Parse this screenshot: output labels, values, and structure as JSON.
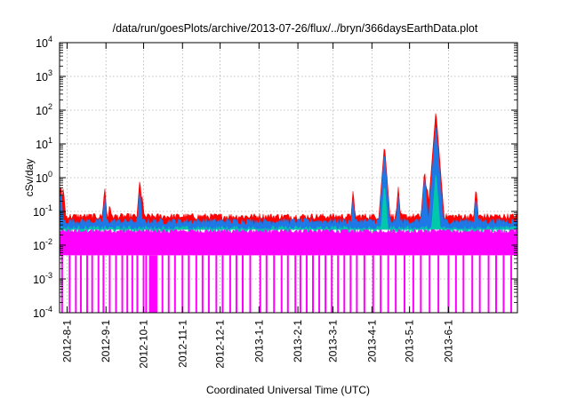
{
  "chart_data": {
    "type": "area",
    "title": "/data/run/goesPlots/archive/2013-07-26/flux/../bryn/366daysEarthData.plot",
    "xlabel": "Coordinated Universal Time (UTC)",
    "ylabel": "cSv/day",
    "y_scale": "log",
    "ylim": [
      0.0001,
      10000
    ],
    "y_ticks": [
      {
        "value": 0.0001,
        "base": "10",
        "exp": "-4"
      },
      {
        "value": 0.001,
        "base": "10",
        "exp": "-3"
      },
      {
        "value": 0.01,
        "base": "10",
        "exp": "-2"
      },
      {
        "value": 0.1,
        "base": "10",
        "exp": "-1"
      },
      {
        "value": 1,
        "base": "10",
        "exp": "0"
      },
      {
        "value": 10,
        "base": "10",
        "exp": "1"
      },
      {
        "value": 100,
        "base": "10",
        "exp": "2"
      },
      {
        "value": 1000,
        "base": "10",
        "exp": "3"
      },
      {
        "value": 10000,
        "base": "10",
        "exp": "4"
      }
    ],
    "xlim": [
      "2012-07-26",
      "2013-07-26"
    ],
    "x_ticks": [
      "2012-8-1",
      "2012-9-1",
      "2012-10-1",
      "2012-11-1",
      "2012-12-1",
      "2013-1-1",
      "2013-2-1",
      "2013-3-1",
      "2013-4-1",
      "2013-5-1",
      "2013-6-1"
    ],
    "grid": true,
    "colors": {
      "series_top": "#ff0000",
      "series_mid": "#1e78e6",
      "series_teal": "#00c8aa",
      "series_base": "#ff00ff"
    },
    "series": [
      {
        "color": "#ff0000",
        "baseline": 0.07,
        "peaks": [
          [
            "2012-07-27",
            0.7
          ],
          [
            "2012-07-29",
            0.55
          ],
          [
            "2012-08-31",
            0.55
          ],
          [
            "2012-09-04",
            0.2
          ],
          [
            "2012-09-28",
            0.95
          ],
          [
            "2012-09-30",
            0.3
          ],
          [
            "2013-03-17",
            0.45
          ],
          [
            "2013-04-11",
            10
          ],
          [
            "2013-04-22",
            0.55
          ],
          [
            "2013-05-13",
            1.8
          ],
          [
            "2013-05-15",
            0.65
          ],
          [
            "2013-05-22",
            100
          ],
          [
            "2013-05-24",
            2
          ],
          [
            "2013-06-23",
            0.55
          ]
        ]
      },
      {
        "color": "#1e78e6",
        "baseline": 0.05,
        "peaks": [
          [
            "2012-07-27",
            0.45
          ],
          [
            "2012-08-31",
            0.3
          ],
          [
            "2012-09-28",
            0.45
          ],
          [
            "2013-03-17",
            0.25
          ],
          [
            "2013-04-11",
            6
          ],
          [
            "2013-04-22",
            0.3
          ],
          [
            "2013-05-13",
            1.2
          ],
          [
            "2013-05-22",
            40
          ],
          [
            "2013-06-23",
            0.3
          ]
        ]
      },
      {
        "color": "#00c8aa",
        "baseline": 0.03,
        "peaks": [
          [
            "2013-04-11",
            0.7
          ],
          [
            "2013-05-22",
            1.5
          ]
        ]
      },
      {
        "color": "#ff00ff",
        "band": [
          0.005,
          0.03
        ],
        "dropouts_to": 0.0001,
        "dropout_dates": [
          "2012-07-28",
          "2012-08-03",
          "2012-08-08",
          "2012-08-12",
          "2012-08-17",
          "2012-08-21",
          "2012-08-26",
          "2012-08-30",
          "2012-09-04",
          "2012-09-09",
          "2012-09-14",
          "2012-09-18",
          "2012-09-22",
          "2012-09-26",
          "2012-10-01",
          "2012-10-03",
          "2012-10-06",
          "2012-10-11",
          "2012-10-16",
          "2012-10-21",
          "2012-10-26",
          "2012-11-01",
          "2012-11-06",
          "2012-11-12",
          "2012-11-17",
          "2012-11-22",
          "2012-11-28",
          "2012-12-03",
          "2012-12-09",
          "2012-12-14",
          "2012-12-19",
          "2012-12-25",
          "2013-01-02",
          "2013-01-07",
          "2013-01-13",
          "2013-01-19",
          "2013-01-24",
          "2013-01-30",
          "2013-02-03",
          "2013-02-08",
          "2013-02-13",
          "2013-02-18",
          "2013-02-23",
          "2013-02-28",
          "2013-03-05",
          "2013-03-10",
          "2013-03-15",
          "2013-03-20",
          "2013-03-26",
          "2013-04-02",
          "2013-04-08",
          "2013-04-14",
          "2013-04-20",
          "2013-04-27",
          "2013-05-04",
          "2013-05-10",
          "2013-05-17",
          "2013-05-24",
          "2013-06-01",
          "2013-06-07",
          "2013-06-13",
          "2013-06-20",
          "2013-06-26",
          "2013-07-03",
          "2013-07-09",
          "2013-07-15",
          "2013-07-21"
        ],
        "dropout_block": [
          "2012-10-06",
          "2012-10-12"
        ]
      }
    ]
  }
}
